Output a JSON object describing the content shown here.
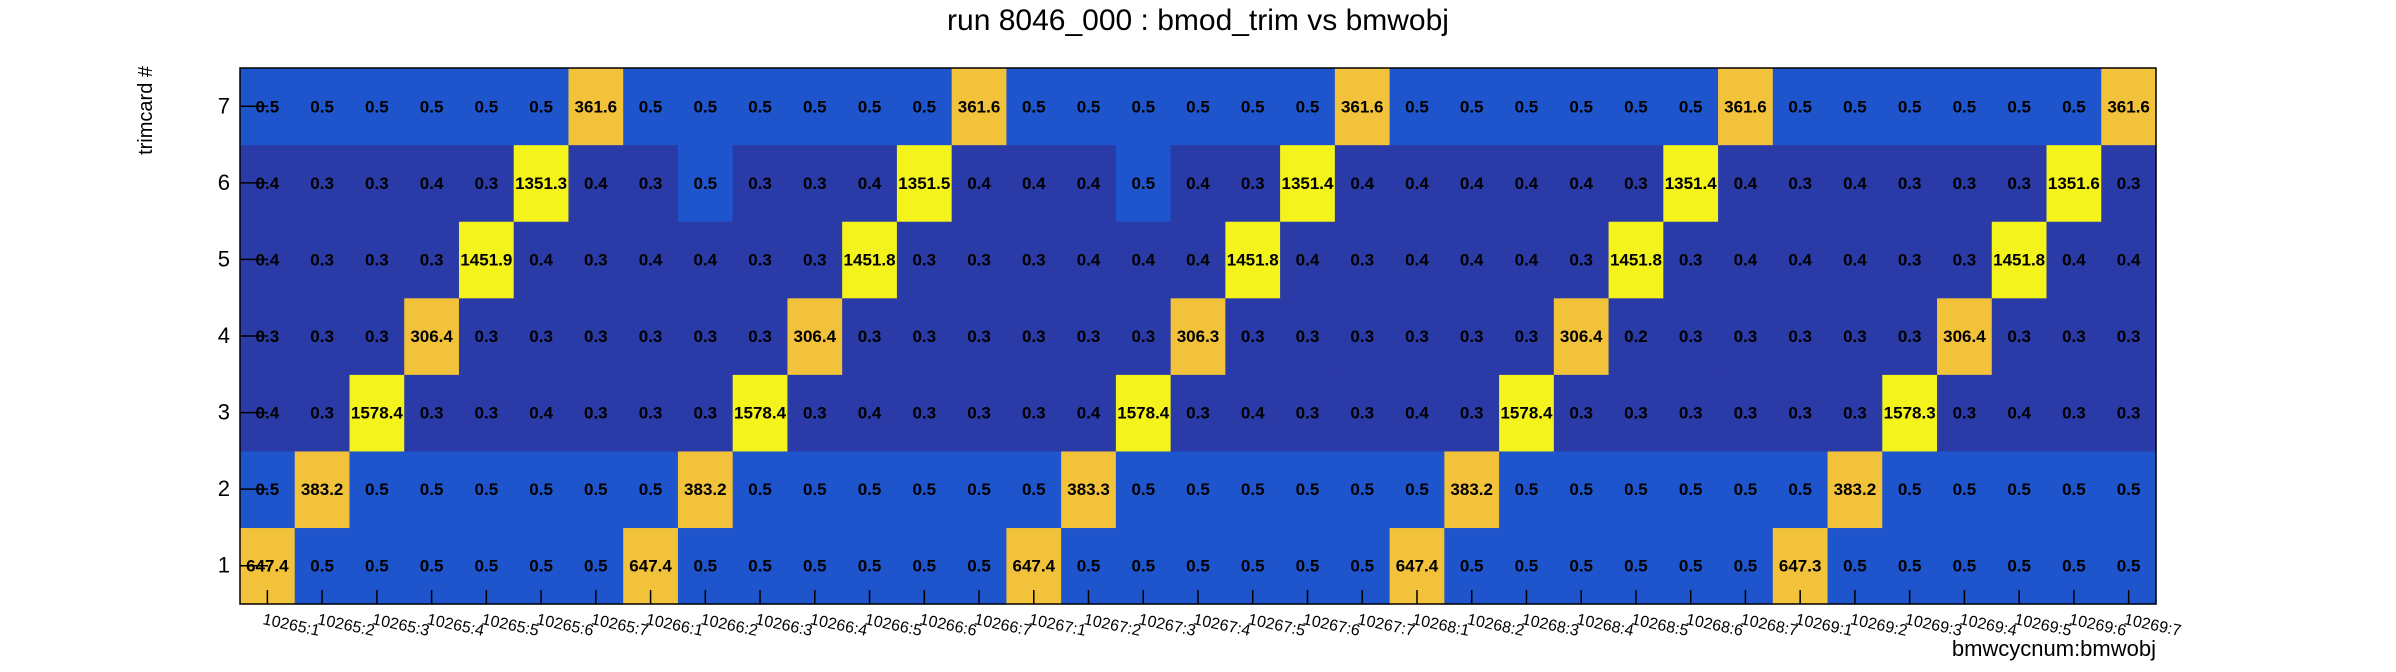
{
  "chart_data": {
    "type": "heatmap",
    "title": "run 8046_000 : bmod_trim vs bmwobj",
    "xlabel": "bmwcycnum:bmwobj",
    "ylabel": "trimcard #",
    "x_categories": [
      "10265:1",
      "10265:2",
      "10265:3",
      "10265:4",
      "10265:5",
      "10265:6",
      "10265:7",
      "10266:1",
      "10266:2",
      "10266:3",
      "10266:4",
      "10266:5",
      "10266:6",
      "10266:7",
      "10267:1",
      "10267:2",
      "10267:3",
      "10267:4",
      "10267:5",
      "10267:6",
      "10267:7",
      "10268:1",
      "10268:2",
      "10268:3",
      "10268:4",
      "10268:5",
      "10268:6",
      "10268:7",
      "10269:1",
      "10269:2",
      "10269:3",
      "10269:4",
      "10269:5",
      "10269:6",
      "10269:7"
    ],
    "y_categories": [
      "1",
      "2",
      "3",
      "4",
      "5",
      "6",
      "7"
    ],
    "values": [
      [
        647.4,
        0.5,
        0.5,
        0.5,
        0.5,
        0.5,
        0.5,
        647.4,
        0.5,
        0.5,
        0.5,
        0.5,
        0.5,
        0.5,
        647.4,
        0.5,
        0.5,
        0.5,
        0.5,
        0.5,
        0.5,
        647.4,
        0.5,
        0.5,
        0.5,
        0.5,
        0.5,
        0.5,
        647.3,
        0.5,
        0.5,
        0.5,
        0.5,
        0.5,
        0.5
      ],
      [
        0.5,
        383.2,
        0.5,
        0.5,
        0.5,
        0.5,
        0.5,
        0.5,
        383.2,
        0.5,
        0.5,
        0.5,
        0.5,
        0.5,
        0.5,
        383.3,
        0.5,
        0.5,
        0.5,
        0.5,
        0.5,
        0.5,
        383.2,
        0.5,
        0.5,
        0.5,
        0.5,
        0.5,
        0.5,
        383.2,
        0.5,
        0.5,
        0.5,
        0.5,
        0.5
      ],
      [
        0.4,
        0.3,
        1578.4,
        0.3,
        0.3,
        0.4,
        0.3,
        0.3,
        0.3,
        1578.4,
        0.3,
        0.4,
        0.3,
        0.3,
        0.3,
        0.4,
        1578.4,
        0.3,
        0.4,
        0.3,
        0.3,
        0.4,
        0.3,
        1578.4,
        0.3,
        0.3,
        0.3,
        0.3,
        0.3,
        0.3,
        1578.3,
        0.3,
        0.4,
        0.3,
        0.3
      ],
      [
        0.3,
        0.3,
        0.3,
        306.4,
        0.3,
        0.3,
        0.3,
        0.3,
        0.3,
        0.3,
        306.4,
        0.3,
        0.3,
        0.3,
        0.3,
        0.3,
        0.3,
        306.3,
        0.3,
        0.3,
        0.3,
        0.3,
        0.3,
        0.3,
        306.4,
        0.2,
        0.3,
        0.3,
        0.3,
        0.3,
        0.3,
        306.4,
        0.3,
        0.3,
        0.3
      ],
      [
        0.4,
        0.3,
        0.3,
        0.3,
        1451.9,
        0.4,
        0.3,
        0.4,
        0.4,
        0.3,
        0.3,
        1451.8,
        0.3,
        0.3,
        0.3,
        0.4,
        0.4,
        0.4,
        1451.8,
        0.4,
        0.3,
        0.4,
        0.4,
        0.4,
        0.3,
        1451.8,
        0.3,
        0.4,
        0.4,
        0.4,
        0.3,
        0.3,
        1451.8,
        0.4,
        0.4
      ],
      [
        0.4,
        0.3,
        0.3,
        0.4,
        0.3,
        1351.3,
        0.4,
        0.3,
        0.5,
        0.3,
        0.3,
        0.4,
        1351.5,
        0.4,
        0.4,
        0.4,
        0.5,
        0.4,
        0.3,
        1351.4,
        0.4,
        0.4,
        0.4,
        0.4,
        0.4,
        0.3,
        1351.4,
        0.4,
        0.3,
        0.4,
        0.3,
        0.3,
        0.3,
        1351.6,
        0.3
      ],
      [
        0.5,
        0.5,
        0.5,
        0.5,
        0.5,
        0.5,
        361.6,
        0.5,
        0.5,
        0.5,
        0.5,
        0.5,
        0.5,
        361.6,
        0.5,
        0.5,
        0.5,
        0.5,
        0.5,
        0.5,
        361.6,
        0.5,
        0.5,
        0.5,
        0.5,
        0.5,
        0.5,
        361.6,
        0.5,
        0.5,
        0.5,
        0.5,
        0.5,
        0.5,
        361.6
      ]
    ],
    "color_scale": {
      "low_dark": "#2a3aa6",
      "low_light": "#1e54cc",
      "mid": "#f2c23a",
      "high": "#f4f41c"
    },
    "grid": false,
    "legend": "none"
  }
}
